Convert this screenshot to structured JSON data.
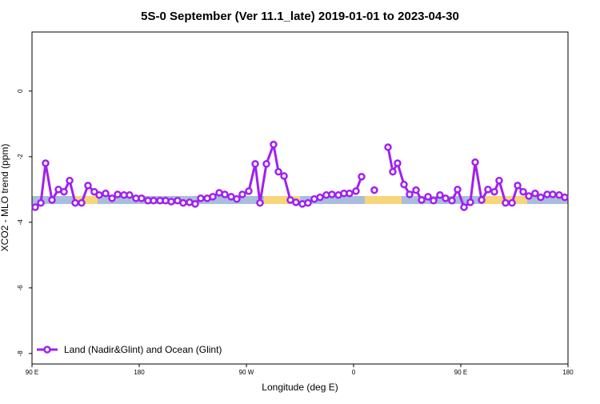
{
  "chart_data": {
    "type": "line",
    "title": "5S-0 September (Ver 11.1_late)   2019-01-01 to 2023-04-30",
    "x_label": "Longitude (deg E)",
    "y_label": "XCO2 - MLO trend (ppm)",
    "x": [
      -267.3,
      -262.6,
      -258.6,
      -253.2,
      -247.8,
      -243.1,
      -238.4,
      -233.7,
      -228.4,
      -223.0,
      -217.7,
      -213.6,
      -208.2,
      -202.8,
      -198.1,
      -192.8,
      -188.1,
      -182.7,
      -178.0,
      -172.6,
      -167.9,
      -162.5,
      -157.8,
      -153.1,
      -147.8,
      -143.1,
      -137.7,
      -133.0,
      -128.3,
      -122.9,
      -118.2,
      -112.8,
      -108.1,
      -102.8,
      -98.1,
      -93.4,
      -88.0,
      -82.6,
      -78.6,
      -73.2,
      -67.2,
      -63.1,
      -58.4,
      -53.1,
      -48.4,
      -43.0,
      -38.3,
      -33.0,
      -28.2,
      -22.9,
      -18.2,
      -12.8,
      -8.1,
      -3.4,
      2.0,
      6.7,
      12.0,
      17.4,
      23.0,
      28.9,
      32.9,
      36.9,
      42.3,
      47.0,
      52.4,
      57.1,
      62.5,
      67.1,
      72.5,
      77.2,
      82.6,
      87.3,
      92.7,
      98.0,
      102.1,
      107.5,
      112.8,
      118.2,
      122.2,
      127.6,
      133.0,
      137.7,
      142.4,
      147.1,
      152.4,
      157.1,
      162.5,
      167.2,
      172.6,
      177.3
    ],
    "series": [
      {
        "name": "Land (Nadir&Glint) and Ocean (Glint)",
        "color": "#a020f0",
        "values": [
          -3.54,
          -3.41,
          -2.2,
          -3.32,
          -3.0,
          -3.07,
          -2.73,
          -3.41,
          -3.41,
          -2.88,
          -3.07,
          -3.17,
          -3.12,
          -3.27,
          -3.15,
          -3.17,
          -3.17,
          -3.27,
          -3.27,
          -3.34,
          -3.34,
          -3.34,
          -3.34,
          -3.37,
          -3.34,
          -3.41,
          -3.39,
          -3.44,
          -3.27,
          -3.27,
          -3.22,
          -3.1,
          -3.15,
          -3.22,
          -3.29,
          -3.15,
          -3.05,
          -2.22,
          -3.41,
          -2.22,
          -1.63,
          -2.46,
          -2.59,
          -3.32,
          -3.39,
          -3.44,
          -3.41,
          -3.29,
          -3.24,
          -3.17,
          -3.15,
          -3.17,
          -3.12,
          -3.12,
          -3.05,
          -2.61,
          null,
          -3.02,
          null,
          -1.71,
          -2.46,
          -2.2,
          -2.85,
          -3.15,
          -3.02,
          -3.32,
          -3.22,
          -3.34,
          -3.17,
          -3.27,
          -3.34,
          -3.0,
          -3.54,
          -3.39,
          -2.17,
          -3.32,
          -3.0,
          -3.07,
          -2.73,
          -3.41,
          -3.41,
          -2.88,
          -3.07,
          -3.2,
          -3.12,
          -3.24,
          -3.15,
          -3.15,
          -3.17,
          -3.24
        ]
      }
    ],
    "xlim": [
      -270,
      180
    ],
    "xticks": [
      {
        "value": -270,
        "label": "90 E"
      },
      {
        "value": -180,
        "label": "180"
      },
      {
        "value": -90,
        "label": "90 W"
      },
      0,
      {
        "value": 90,
        "label": "90 E"
      },
      180
    ],
    "ylim": [
      -8.32,
      1.8
    ],
    "yticks": [
      -8,
      -6,
      -4,
      -2,
      0
    ],
    "legend": "lower left"
  }
}
